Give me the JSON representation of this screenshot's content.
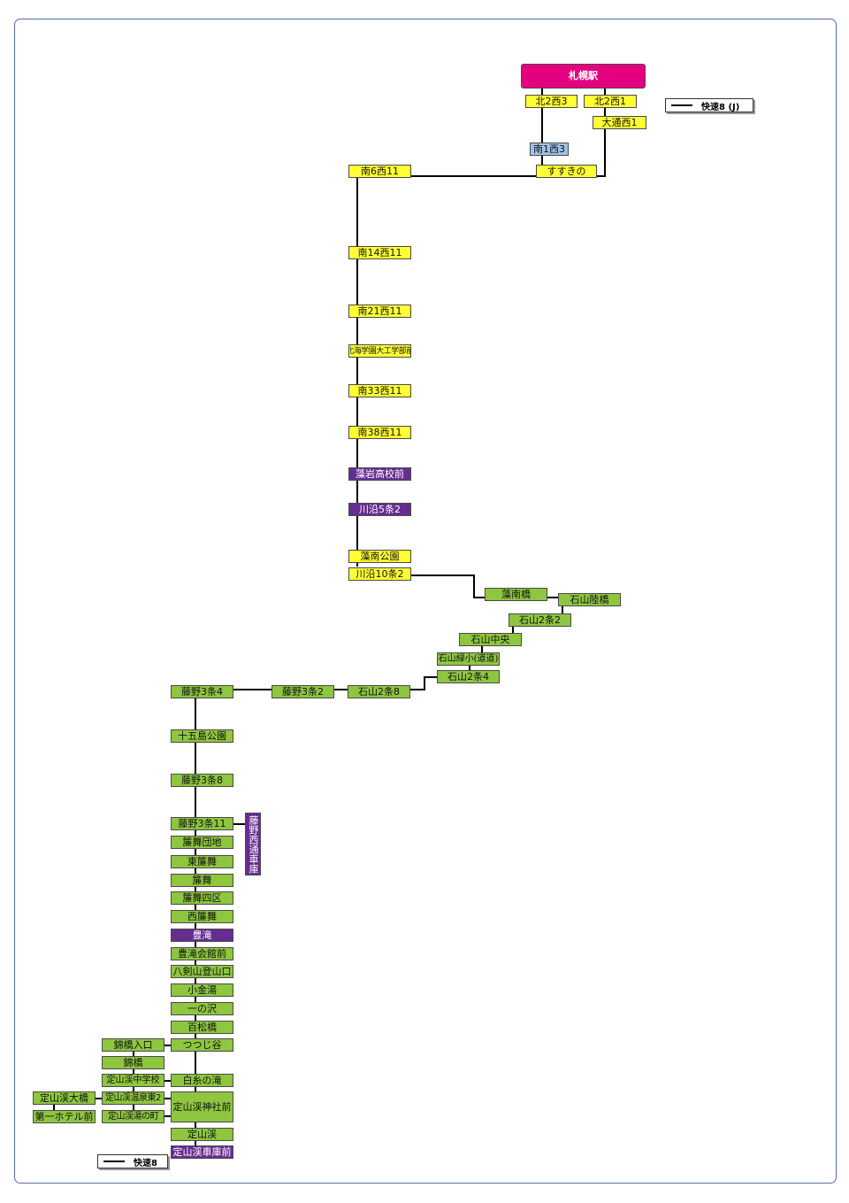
{
  "stations": {
    "sapporo_eki": "札幌駅",
    "kita2nishi3": "北2西3",
    "kita2nishi1": "北2西1",
    "odori_nishi1": "大通西1",
    "minami1nishi3": "南1西3",
    "susukino": "すすきの",
    "minami6nishi11": "南6西11",
    "minami14nishi11": "南14西11",
    "minami21nishi11": "南21西11",
    "hokkai_gakuen": "北海学園大工学部前",
    "minami33nishi11": "南33西11",
    "minami38nishi11": "南38西11",
    "moiwa_koko": "藻岩高校前",
    "kawazoe5jo2": "川沿5条2",
    "sonan_koen": "藻南公園",
    "kawazoe10jo2": "川沿10条2",
    "sonan_bashi": "藻南橋",
    "ishiyama_rikkyo": "石山陸橋",
    "ishiyama2jo2": "石山2条2",
    "ishiyama_chuo": "石山中央",
    "ishiyama_midori": "石山緑小(道道)",
    "ishiyama2jo4": "石山2条4",
    "ishiyama2jo8": "石山2条8",
    "fujino3jo2": "藤野3条2",
    "fujino3jo4": "藤野3条4",
    "jugoshima_koen": "十五島公園",
    "fujino3jo8": "藤野3条8",
    "fujino3jo11": "藤野3条11",
    "fujino_depot": "藤野西通車庫",
    "ranshin_danchi": "簾舞団地",
    "higashi_ranshin": "東簾舞",
    "ranshin": "簾舞",
    "ranshin4ku": "簾舞四区",
    "nishi_ranshin": "西簾舞",
    "toyotaki": "豊滝",
    "toyotaki_kaikan": "豊滝会館前",
    "hakkenzan": "八剣山登山口",
    "kogane_yu": "小金湯",
    "ichinosawa": "一の沢",
    "hyakumatsu_bashi": "百松橋",
    "tsutsujidani": "つつじ谷",
    "nishiki_bashi_iriguchi": "錦橋入口",
    "nishiki_bashi": "錦橋",
    "jozankei_chugakko": "定山渓中学校",
    "shiraito_no_taki": "白糸の滝",
    "jozankei_ohashi": "定山渓大橋",
    "jozankei_onsen_higashi2": "定山渓温泉東2",
    "jozankei_jinja": "定山渓神社前",
    "dai_ichi_hotel": "第一ホテル前",
    "jozankei_yunomachi": "定山渓湯の町",
    "jozankei": "定山渓",
    "jozankei_shakomae": "定山渓車庫前"
  },
  "legend": {
    "top": "快速8 (J)",
    "bottom": "快速8"
  },
  "colors": {
    "magenta": "#e4007f",
    "yellow": "#ffff33",
    "green": "#8ec63f",
    "blue": "#9ec3e6",
    "purple": "#662d91",
    "line": "#000000",
    "frame": "#5a6aa8"
  }
}
